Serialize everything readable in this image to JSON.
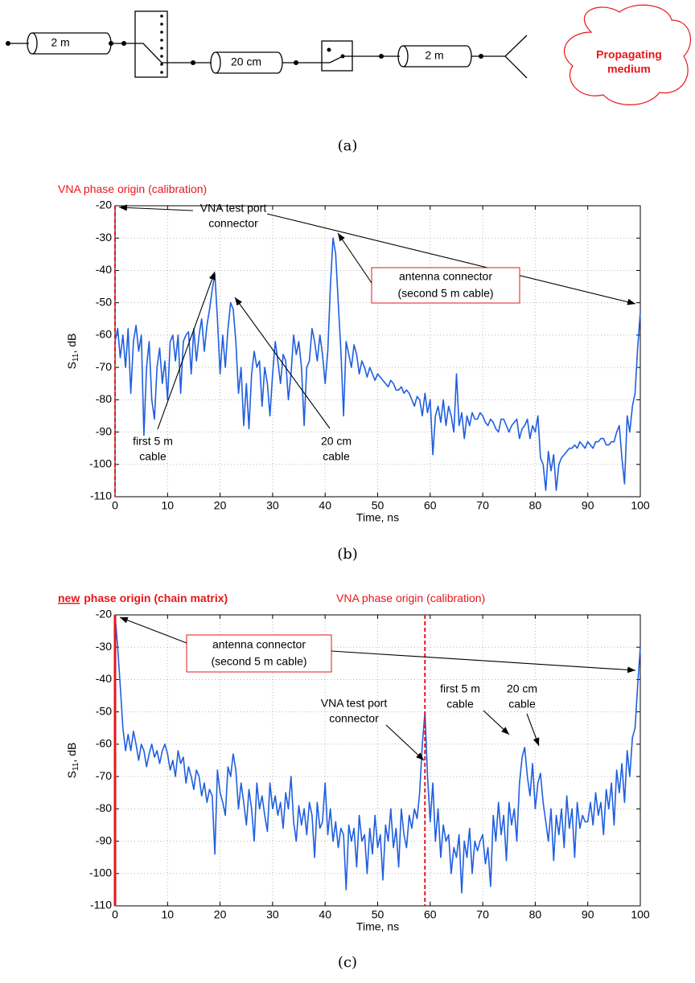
{
  "diagram": {
    "cables": [
      "2 m",
      "20 cm",
      "2 m"
    ],
    "medium": [
      "Propagating",
      "medium"
    ],
    "caption": "(a)"
  },
  "chart_data": [
    {
      "type": "line",
      "caption": "(b)",
      "xlabel": "Time, ns",
      "ylabel": {
        "text": "S",
        "subscript": "11",
        "suffix": ", dB"
      },
      "xlim": [
        0,
        100
      ],
      "ylim": [
        -110,
        -20
      ],
      "xticks": [
        0,
        10,
        20,
        30,
        40,
        50,
        60,
        70,
        80,
        90,
        100
      ],
      "yticks": [
        -20,
        -30,
        -40,
        -50,
        -60,
        -70,
        -80,
        -90,
        -100,
        -110
      ],
      "grid": true,
      "origin_labels": [
        {
          "text": "VNA phase origin (calibration)"
        }
      ],
      "vlines": [
        {
          "x": 0,
          "style": "dashed",
          "color": "#e8161b"
        }
      ],
      "annotations": [
        {
          "lines": [
            "VNA test port",
            "connector"
          ],
          "boxed": false
        },
        {
          "lines": [
            "antenna connector",
            "(second 5 m cable)"
          ],
          "boxed": true
        },
        {
          "lines": [
            "first 5 m",
            "cable"
          ],
          "boxed": false
        },
        {
          "lines": [
            "20 cm",
            "cable"
          ],
          "boxed": false
        }
      ],
      "series": [
        {
          "color": "#1f5fe0",
          "x": [
            0,
            0.5,
            1,
            1.5,
            2,
            2.5,
            3,
            3.5,
            4,
            4.5,
            5,
            5.5,
            6,
            6.5,
            7,
            7.5,
            8,
            8.5,
            9,
            9.5,
            10,
            10.5,
            11,
            11.5,
            12,
            12.5,
            13,
            13.5,
            14,
            14.5,
            15,
            15.5,
            16,
            16.5,
            17,
            17.5,
            18,
            18.5,
            19,
            19.5,
            20,
            20.5,
            21,
            21.5,
            22,
            22.5,
            23,
            23.5,
            24,
            24.5,
            25,
            25.5,
            26,
            26.5,
            27,
            27.5,
            28,
            28.5,
            29,
            29.5,
            30,
            30.5,
            31,
            31.5,
            32,
            32.5,
            33,
            33.5,
            34,
            34.5,
            35,
            35.5,
            36,
            36.5,
            37,
            37.5,
            38,
            38.5,
            39,
            39.5,
            40,
            40.5,
            41,
            41.5,
            42,
            42.5,
            43,
            43.5,
            44,
            44.5,
            45,
            45.5,
            46,
            46.5,
            47,
            47.5,
            48,
            48.5,
            49,
            49.5,
            50,
            50.5,
            51,
            51.5,
            52,
            52.5,
            53,
            53.5,
            54,
            54.5,
            55,
            55.5,
            56,
            56.5,
            57,
            57.5,
            58,
            58.5,
            59,
            59.5,
            60,
            60.5,
            61,
            61.5,
            62,
            62.5,
            63,
            63.5,
            64,
            64.5,
            65,
            65.5,
            66,
            66.5,
            67,
            67.5,
            68,
            68.5,
            69,
            69.5,
            70,
            70.5,
            71,
            71.5,
            72,
            72.5,
            73,
            73.5,
            74,
            74.5,
            75,
            75.5,
            76,
            76.5,
            77,
            77.5,
            78,
            78.5,
            79,
            79.5,
            80,
            80.5,
            81,
            81.5,
            82,
            82.5,
            83,
            83.5,
            84,
            84.5,
            85,
            85.5,
            86,
            86.5,
            87,
            87.5,
            88,
            88.5,
            89,
            89.5,
            90,
            90.5,
            91,
            91.5,
            92,
            92.5,
            93,
            93.5,
            94,
            94.5,
            95,
            95.5,
            96,
            96.5,
            97,
            97.5,
            98,
            98.5,
            99,
            99.5,
            100
          ],
          "values": [
            -62,
            -58,
            -67,
            -60,
            -70,
            -58,
            -78,
            -62,
            -57,
            -65,
            -60,
            -91,
            -70,
            -62,
            -80,
            -86,
            -70,
            -64,
            -75,
            -68,
            -80,
            -62,
            -60,
            -68,
            -60,
            -78,
            -62,
            -60,
            -59,
            -72,
            -58,
            -68,
            -60,
            -55,
            -65,
            -57,
            -52,
            -46,
            -41,
            -55,
            -72,
            -60,
            -70,
            -58,
            -50,
            -52,
            -62,
            -78,
            -70,
            -88,
            -75,
            -89,
            -72,
            -65,
            -70,
            -68,
            -82,
            -70,
            -75,
            -85,
            -72,
            -62,
            -68,
            -75,
            -66,
            -68,
            -80,
            -72,
            -60,
            -66,
            -62,
            -70,
            -88,
            -70,
            -68,
            -58,
            -62,
            -68,
            -60,
            -66,
            -75,
            -65,
            -45,
            -30,
            -35,
            -50,
            -65,
            -85,
            -62,
            -66,
            -70,
            -63,
            -66,
            -72,
            -68,
            -70,
            -73,
            -70,
            -72,
            -74,
            -72,
            -73,
            -74,
            -75,
            -76,
            -74,
            -75,
            -77,
            -77,
            -76,
            -78,
            -77,
            -78,
            -80,
            -82,
            -79,
            -80,
            -85,
            -78,
            -84,
            -80,
            -97,
            -85,
            -82,
            -87,
            -80,
            -88,
            -82,
            -85,
            -90,
            -72,
            -88,
            -84,
            -92,
            -85,
            -88,
            -84,
            -86,
            -86,
            -84,
            -85,
            -87,
            -88,
            -86,
            -87,
            -89,
            -90,
            -86,
            -86,
            -88,
            -90,
            -88,
            -87,
            -86,
            -92,
            -89,
            -88,
            -86,
            -92,
            -88,
            -90,
            -85,
            -98,
            -100,
            -108,
            -96,
            -102,
            -97,
            -108,
            -100,
            -98,
            -97,
            -96,
            -95,
            -95,
            -94,
            -95,
            -93,
            -94,
            -95,
            -93,
            -94,
            -95,
            -93,
            -93,
            -92,
            -92,
            -94,
            -94,
            -93,
            -93,
            -90,
            -88,
            -98,
            -106,
            -85,
            -90,
            -82,
            -78,
            -64,
            -53
          ]
        }
      ]
    },
    {
      "type": "line",
      "caption": "(c)",
      "xlabel": "Time, ns",
      "ylabel": {
        "text": "S",
        "subscript": "11",
        "suffix": ", dB"
      },
      "xlim": [
        0,
        100
      ],
      "ylim": [
        -110,
        -20
      ],
      "xticks": [
        0,
        10,
        20,
        30,
        40,
        50,
        60,
        70,
        80,
        90,
        100
      ],
      "yticks": [
        -20,
        -30,
        -40,
        -50,
        -60,
        -70,
        -80,
        -90,
        -100,
        -110
      ],
      "grid": true,
      "origin_labels": [
        {
          "emphasis": "new",
          "text": "phase origin (chain matrix)"
        },
        {
          "text": "VNA phase origin (calibration)"
        }
      ],
      "vlines": [
        {
          "x": 0,
          "style": "solid",
          "color": "#e8161b"
        },
        {
          "x": 59,
          "style": "dashed",
          "color": "#e8161b"
        }
      ],
      "annotations": [
        {
          "lines": [
            "antenna connector",
            "(second 5 m cable)"
          ],
          "boxed": true
        },
        {
          "lines": [
            "VNA test port",
            "connector"
          ],
          "boxed": false
        },
        {
          "lines": [
            "first 5 m",
            "cable"
          ],
          "boxed": false
        },
        {
          "lines": [
            "20 cm",
            "cable"
          ],
          "boxed": false
        }
      ],
      "series": [
        {
          "color": "#1f5fe0",
          "x": [
            0,
            0.5,
            1,
            1.5,
            2,
            2.5,
            3,
            3.5,
            4,
            4.5,
            5,
            5.5,
            6,
            6.5,
            7,
            7.5,
            8,
            8.5,
            9,
            9.5,
            10,
            10.5,
            11,
            11.5,
            12,
            12.5,
            13,
            13.5,
            14,
            14.5,
            15,
            15.5,
            16,
            16.5,
            17,
            17.5,
            18,
            18.5,
            19,
            19.5,
            20,
            20.5,
            21,
            21.5,
            22,
            22.5,
            23,
            23.5,
            24,
            24.5,
            25,
            25.5,
            26,
            26.5,
            27,
            27.5,
            28,
            28.5,
            29,
            29.5,
            30,
            30.5,
            31,
            31.5,
            32,
            32.5,
            33,
            33.5,
            34,
            34.5,
            35,
            35.5,
            36,
            36.5,
            37,
            37.5,
            38,
            38.5,
            39,
            39.5,
            40,
            40.5,
            41,
            41.5,
            42,
            42.5,
            43,
            43.5,
            44,
            44.5,
            45,
            45.5,
            46,
            46.5,
            47,
            47.5,
            48,
            48.5,
            49,
            49.5,
            50,
            50.5,
            51,
            51.5,
            52,
            52.5,
            53,
            53.5,
            54,
            54.5,
            55,
            55.5,
            56,
            56.5,
            57,
            57.5,
            58,
            58.5,
            59,
            59.5,
            60,
            60.5,
            61,
            61.5,
            62,
            62.5,
            63,
            63.5,
            64,
            64.5,
            65,
            65.5,
            66,
            66.5,
            67,
            67.5,
            68,
            68.5,
            69,
            69.5,
            70,
            70.5,
            71,
            71.5,
            72,
            72.5,
            73,
            73.5,
            74,
            74.5,
            75,
            75.5,
            76,
            76.5,
            77,
            77.5,
            78,
            78.5,
            79,
            79.5,
            80,
            80.5,
            81,
            81.5,
            82,
            82.5,
            83,
            83.5,
            84,
            84.5,
            85,
            85.5,
            86,
            86.5,
            87,
            87.5,
            88,
            88.5,
            89,
            89.5,
            90,
            90.5,
            91,
            91.5,
            92,
            92.5,
            93,
            93.5,
            94,
            94.5,
            95,
            95.5,
            96,
            96.5,
            97,
            97.5,
            98,
            98.5,
            99,
            99.5,
            100
          ],
          "values": [
            -20,
            -30,
            -42,
            -55,
            -62,
            -57,
            -62,
            -56,
            -60,
            -65,
            -60,
            -62,
            -67,
            -63,
            -60,
            -64,
            -62,
            -66,
            -62,
            -60,
            -63,
            -68,
            -65,
            -70,
            -62,
            -66,
            -64,
            -72,
            -67,
            -70,
            -74,
            -68,
            -70,
            -76,
            -72,
            -78,
            -74,
            -76,
            -94,
            -68,
            -75,
            -78,
            -82,
            -67,
            -70,
            -63,
            -68,
            -80,
            -72,
            -78,
            -85,
            -74,
            -80,
            -90,
            -72,
            -80,
            -76,
            -82,
            -87,
            -72,
            -80,
            -76,
            -82,
            -78,
            -86,
            -75,
            -80,
            -70,
            -84,
            -90,
            -79,
            -85,
            -80,
            -88,
            -78,
            -82,
            -95,
            -78,
            -86,
            -84,
            -72,
            -88,
            -80,
            -90,
            -84,
            -92,
            -86,
            -88,
            -105,
            -85,
            -90,
            -86,
            -98,
            -82,
            -90,
            -88,
            -100,
            -86,
            -94,
            -82,
            -92,
            -88,
            -102,
            -85,
            -90,
            -80,
            -92,
            -86,
            -98,
            -80,
            -88,
            -92,
            -82,
            -86,
            -80,
            -83,
            -75,
            -60,
            -50,
            -70,
            -84,
            -72,
            -90,
            -80,
            -95,
            -85,
            -90,
            -88,
            -100,
            -92,
            -95,
            -88,
            -106,
            -90,
            -95,
            -86,
            -100,
            -90,
            -93,
            -90,
            -88,
            -97,
            -92,
            -104,
            -82,
            -90,
            -78,
            -88,
            -82,
            -96,
            -78,
            -85,
            -80,
            -90,
            -72,
            -64,
            -61,
            -70,
            -76,
            -66,
            -80,
            -72,
            -69,
            -78,
            -84,
            -90,
            -80,
            -96,
            -82,
            -88,
            -80,
            -92,
            -76,
            -86,
            -80,
            -95,
            -78,
            -86,
            -82,
            -84,
            -84,
            -78,
            -85,
            -75,
            -82,
            -78,
            -88,
            -74,
            -80,
            -72,
            -85,
            -68,
            -75,
            -66,
            -78,
            -62,
            -70,
            -58,
            -55,
            -42,
            -30
          ]
        }
      ]
    }
  ]
}
